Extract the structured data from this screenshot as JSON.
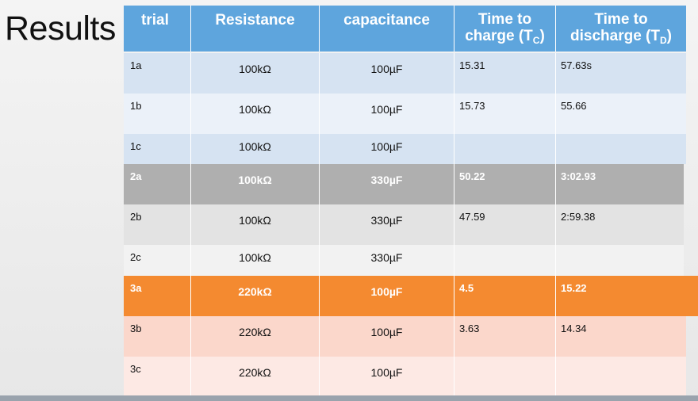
{
  "title": "Results",
  "headers": {
    "trial": "trial",
    "resistance": "Resistance",
    "capacitance": "capacitance",
    "charge_line1": "Time to",
    "charge_line2": "charge (T",
    "charge_sub": "C",
    "discharge_line1": "Time to",
    "discharge_line2": "discharge (T",
    "discharge_sub": "D"
  },
  "rows": [
    {
      "trial": "1a",
      "resistance": "100kΩ",
      "capacitance": "100µF",
      "charge": "15.31",
      "discharge": "57.63s",
      "color": "#d6e3f2"
    },
    {
      "trial": "1b",
      "resistance": "100kΩ",
      "capacitance": "100µF",
      "charge": "15.73",
      "discharge": "55.66",
      "color": "#ebf1f9"
    },
    {
      "trial": "1c",
      "resistance": "100kΩ",
      "capacitance": "100µF",
      "charge": "",
      "discharge": "",
      "color": "#d6e3f2"
    },
    {
      "trial": "2a",
      "resistance": "100kΩ",
      "capacitance": "330µF",
      "charge": "50.22",
      "discharge": "3:02.93",
      "color": "#afafaf"
    },
    {
      "trial": "2b",
      "resistance": "100kΩ",
      "capacitance": "330µF",
      "charge": "47.59",
      "discharge": "2:59.38",
      "color": "#e3e3e3"
    },
    {
      "trial": "2c",
      "resistance": "100kΩ",
      "capacitance": "330µF",
      "charge": "",
      "discharge": "",
      "color": "#f2f2f2"
    },
    {
      "trial": "3a",
      "resistance": "220kΩ",
      "capacitance": "100µF",
      "charge": "4.5",
      "discharge": "15.22",
      "color": "#f48a30"
    },
    {
      "trial": "3b",
      "resistance": "220kΩ",
      "capacitance": "100µF",
      "charge": "3.63",
      "discharge": "14.34",
      "color": "#fbd7cb"
    },
    {
      "trial": "3c",
      "resistance": "220kΩ",
      "capacitance": "100µF",
      "charge": "",
      "discharge": "",
      "color": "#fde9e4"
    }
  ]
}
